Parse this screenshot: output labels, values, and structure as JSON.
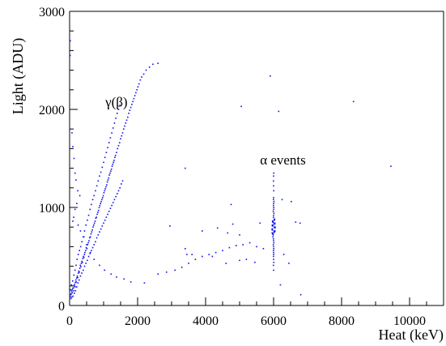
{
  "colors": {
    "series": "#1010ee",
    "axis": "#000000",
    "background": "#ffffff"
  },
  "chart_data": {
    "type": "scatter",
    "title": "",
    "xlabel": "Heat (keV)",
    "ylabel": "Light (ADU)",
    "xlim": [
      0,
      11000
    ],
    "ylim": [
      0,
      3000
    ],
    "xticks": [
      {
        "value": 0,
        "label": "0"
      },
      {
        "value": 2000,
        "label": "2000"
      },
      {
        "value": 4000,
        "label": "4000"
      },
      {
        "value": 6000,
        "label": "6000"
      },
      {
        "value": 8000,
        "label": "8000"
      },
      {
        "value": 10000,
        "label": "10000"
      }
    ],
    "yticks": [
      {
        "value": 0,
        "label": "0"
      },
      {
        "value": 1000,
        "label": "1000"
      },
      {
        "value": 2000,
        "label": "2000"
      },
      {
        "value": 3000,
        "label": "3000"
      }
    ],
    "annotations": [
      {
        "text": "γ(β)",
        "x": 1050,
        "y": 2030
      },
      {
        "text": "α events",
        "x": 5600,
        "y": 1440
      }
    ],
    "grid": false,
    "legend": "none",
    "series": [
      {
        "points": [
          [
            20,
            90
          ],
          [
            35,
            110
          ],
          [
            50,
            120
          ],
          [
            60,
            145
          ],
          [
            75,
            160
          ],
          [
            80,
            130
          ],
          [
            95,
            175
          ],
          [
            110,
            180
          ],
          [
            120,
            150
          ],
          [
            135,
            200
          ],
          [
            145,
            215
          ],
          [
            160,
            190
          ],
          [
            170,
            235
          ],
          [
            185,
            260
          ],
          [
            195,
            240
          ],
          [
            210,
            280
          ],
          [
            225,
            300
          ],
          [
            240,
            285
          ],
          [
            255,
            330
          ],
          [
            270,
            350
          ],
          [
            285,
            340
          ],
          [
            300,
            380
          ],
          [
            315,
            410
          ],
          [
            330,
            395
          ],
          [
            345,
            430
          ],
          [
            360,
            450
          ],
          [
            375,
            440
          ],
          [
            390,
            480
          ],
          [
            405,
            500
          ],
          [
            420,
            490
          ],
          [
            435,
            520
          ],
          [
            450,
            540
          ],
          [
            470,
            560
          ],
          [
            490,
            590
          ],
          [
            510,
            580
          ],
          [
            530,
            620
          ],
          [
            550,
            640
          ],
          [
            570,
            660
          ],
          [
            590,
            690
          ],
          [
            610,
            700
          ],
          [
            630,
            730
          ],
          [
            650,
            750
          ],
          [
            670,
            770
          ],
          [
            690,
            800
          ],
          [
            710,
            820
          ],
          [
            730,
            840
          ],
          [
            750,
            860
          ],
          [
            770,
            890
          ],
          [
            790,
            900
          ],
          [
            810,
            930
          ],
          [
            830,
            950
          ],
          [
            850,
            970
          ],
          [
            870,
            1000
          ],
          [
            890,
            1020
          ],
          [
            910,
            1040
          ],
          [
            930,
            1060
          ],
          [
            950,
            1080
          ],
          [
            970,
            1100
          ],
          [
            990,
            1120
          ],
          [
            1010,
            1150
          ],
          [
            1030,
            1170
          ],
          [
            1050,
            1190
          ],
          [
            1070,
            1210
          ],
          [
            1090,
            1230
          ],
          [
            1110,
            1260
          ],
          [
            1130,
            1280
          ],
          [
            1150,
            1300
          ],
          [
            1170,
            1330
          ],
          [
            1190,
            1350
          ],
          [
            1210,
            1370
          ],
          [
            1230,
            1390
          ],
          [
            1250,
            1420
          ],
          [
            1270,
            1440
          ],
          [
            1290,
            1460
          ],
          [
            1310,
            1480
          ],
          [
            1330,
            1510
          ],
          [
            1350,
            1530
          ],
          [
            1380,
            1560
          ],
          [
            1410,
            1600
          ],
          [
            1440,
            1630
          ],
          [
            1470,
            1660
          ],
          [
            1500,
            1700
          ],
          [
            1530,
            1730
          ],
          [
            1560,
            1760
          ],
          [
            1590,
            1800
          ],
          [
            1620,
            1830
          ],
          [
            1650,
            1860
          ],
          [
            1680,
            1890
          ],
          [
            1710,
            1920
          ],
          [
            1740,
            1960
          ],
          [
            1770,
            1990
          ],
          [
            1800,
            2020
          ],
          [
            1830,
            2050
          ],
          [
            1860,
            2080
          ],
          [
            1890,
            2110
          ],
          [
            1920,
            2140
          ],
          [
            1950,
            2170
          ],
          [
            1980,
            2200
          ],
          [
            2010,
            2230
          ],
          [
            2040,
            2260
          ],
          [
            2080,
            2300
          ],
          [
            2120,
            2330
          ],
          [
            2180,
            2360
          ],
          [
            2250,
            2400
          ],
          [
            2350,
            2430
          ],
          [
            2450,
            2460
          ],
          [
            2600,
            2470
          ],
          [
            30,
            160
          ],
          [
            55,
            210
          ],
          [
            90,
            250
          ],
          [
            125,
            310
          ],
          [
            160,
            360
          ],
          [
            190,
            410
          ],
          [
            220,
            470
          ],
          [
            255,
            520
          ],
          [
            290,
            560
          ],
          [
            325,
            600
          ],
          [
            360,
            650
          ],
          [
            400,
            700
          ],
          [
            440,
            760
          ],
          [
            480,
            820
          ],
          [
            520,
            870
          ],
          [
            560,
            920
          ],
          [
            600,
            980
          ],
          [
            640,
            1030
          ],
          [
            680,
            1080
          ],
          [
            720,
            1120
          ],
          [
            760,
            1170
          ],
          [
            800,
            1220
          ],
          [
            840,
            1270
          ],
          [
            880,
            1320
          ],
          [
            920,
            1360
          ],
          [
            960,
            1410
          ],
          [
            1000,
            1460
          ],
          [
            1040,
            1510
          ],
          [
            1080,
            1560
          ],
          [
            1120,
            1610
          ],
          [
            1160,
            1660
          ],
          [
            1200,
            1710
          ],
          [
            1240,
            1760
          ],
          [
            1280,
            1810
          ],
          [
            1320,
            1860
          ],
          [
            1360,
            1910
          ],
          [
            1400,
            1960
          ],
          [
            1440,
            2000
          ],
          [
            1480,
            2040
          ],
          [
            40,
            70
          ],
          [
            65,
            85
          ],
          [
            100,
            95
          ],
          [
            140,
            125
          ],
          [
            175,
            150
          ],
          [
            210,
            190
          ],
          [
            245,
            230
          ],
          [
            280,
            260
          ],
          [
            320,
            300
          ],
          [
            360,
            330
          ],
          [
            400,
            360
          ],
          [
            440,
            400
          ],
          [
            480,
            430
          ],
          [
            520,
            460
          ],
          [
            560,
            500
          ],
          [
            600,
            530
          ],
          [
            640,
            560
          ],
          [
            680,
            590
          ],
          [
            720,
            620
          ],
          [
            760,
            650
          ],
          [
            800,
            690
          ],
          [
            840,
            720
          ],
          [
            880,
            750
          ],
          [
            920,
            780
          ],
          [
            960,
            810
          ],
          [
            1000,
            840
          ],
          [
            1040,
            870
          ],
          [
            1080,
            900
          ],
          [
            1120,
            930
          ],
          [
            1160,
            960
          ],
          [
            1200,
            990
          ],
          [
            1240,
            1020
          ],
          [
            1280,
            1050
          ],
          [
            1320,
            1080
          ],
          [
            1360,
            1110
          ],
          [
            1400,
            1140
          ],
          [
            1440,
            1170
          ],
          [
            1480,
            1200
          ],
          [
            1520,
            1240
          ],
          [
            1560,
            1270
          ],
          [
            70,
            1760
          ],
          [
            95,
            1620
          ],
          [
            130,
            1500
          ],
          [
            160,
            1350
          ],
          [
            190,
            1280
          ],
          [
            240,
            1170
          ],
          [
            300,
            1120
          ],
          [
            210,
            1040
          ],
          [
            160,
            980
          ],
          [
            120,
            900
          ],
          [
            95,
            860
          ],
          [
            250,
            820
          ],
          [
            320,
            760
          ],
          [
            420,
            700
          ],
          [
            500,
            620
          ],
          [
            610,
            540
          ],
          [
            720,
            470
          ],
          [
            880,
            410
          ],
          [
            1030,
            360
          ],
          [
            1220,
            320
          ],
          [
            1380,
            290
          ],
          [
            1600,
            270
          ],
          [
            1800,
            240
          ],
          [
            2200,
            230
          ],
          [
            2600,
            320
          ],
          [
            2850,
            340
          ],
          [
            3100,
            360
          ],
          [
            3300,
            390
          ],
          [
            3500,
            430
          ],
          [
            3700,
            470
          ],
          [
            3900,
            500
          ],
          [
            4100,
            520
          ],
          [
            4300,
            540
          ],
          [
            4500,
            560
          ],
          [
            4700,
            590
          ],
          [
            4900,
            610
          ],
          [
            5100,
            620
          ],
          [
            5300,
            640
          ],
          [
            5500,
            600
          ],
          [
            5700,
            580
          ],
          [
            3400,
            580
          ],
          [
            3450,
            520
          ],
          [
            3600,
            520
          ],
          [
            4200,
            500
          ],
          [
            4600,
            430
          ],
          [
            5000,
            460
          ],
          [
            5200,
            470
          ],
          [
            5450,
            440
          ],
          [
            2950,
            810
          ],
          [
            3900,
            760
          ],
          [
            4350,
            790
          ],
          [
            4650,
            740
          ],
          [
            4800,
            830
          ],
          [
            5000,
            720
          ],
          [
            5600,
            840
          ],
          [
            4750,
            1030
          ],
          [
            6250,
            1080
          ],
          [
            6520,
            1060
          ],
          [
            6650,
            850
          ],
          [
            6780,
            840
          ],
          [
            6300,
            520
          ],
          [
            6450,
            430
          ],
          [
            6200,
            210
          ],
          [
            6800,
            110
          ],
          [
            3400,
            1400
          ],
          [
            5050,
            2030
          ],
          [
            5900,
            2340
          ],
          [
            6150,
            1980
          ],
          [
            8350,
            2080
          ],
          [
            9450,
            1420
          ],
          [
            20,
            2700
          ],
          [
            15,
            2550
          ],
          [
            5980,
            700
          ],
          [
            5990,
            720
          ],
          [
            6000,
            740
          ],
          [
            6010,
            760
          ],
          [
            5970,
            780
          ],
          [
            6020,
            800
          ],
          [
            5990,
            820
          ],
          [
            6005,
            840
          ],
          [
            5985,
            860
          ],
          [
            6015,
            880
          ],
          [
            5995,
            900
          ],
          [
            6000,
            920
          ],
          [
            6010,
            940
          ],
          [
            5990,
            960
          ],
          [
            6000,
            980
          ],
          [
            6005,
            1000
          ],
          [
            5995,
            1020
          ],
          [
            6000,
            1040
          ],
          [
            6010,
            1060
          ],
          [
            5995,
            1080
          ],
          [
            6000,
            1100
          ],
          [
            6005,
            1170
          ],
          [
            6000,
            1220
          ],
          [
            5995,
            1270
          ],
          [
            6000,
            1320
          ],
          [
            6005,
            1350
          ],
          [
            5995,
            680
          ],
          [
            6000,
            660
          ],
          [
            6008,
            640
          ],
          [
            5992,
            620
          ],
          [
            6000,
            600
          ],
          [
            6004,
            580
          ],
          [
            5996,
            560
          ],
          [
            6000,
            540
          ],
          [
            6002,
            520
          ],
          [
            5998,
            500
          ],
          [
            6000,
            470
          ],
          [
            6006,
            440
          ],
          [
            5994,
            410
          ],
          [
            6000,
            360
          ],
          [
            5970,
            730
          ],
          [
            6030,
            750
          ],
          [
            5960,
            770
          ],
          [
            6040,
            790
          ],
          [
            5965,
            810
          ],
          [
            6035,
            830
          ],
          [
            5975,
            850
          ],
          [
            6025,
            870
          ],
          [
            5958,
            740
          ],
          [
            6042,
            760
          ],
          [
            5955,
            780
          ],
          [
            6045,
            800
          ],
          [
            5962,
            820
          ],
          [
            6038,
            840
          ],
          [
            5968,
            860
          ],
          [
            6032,
            880
          ]
        ]
      }
    ]
  }
}
